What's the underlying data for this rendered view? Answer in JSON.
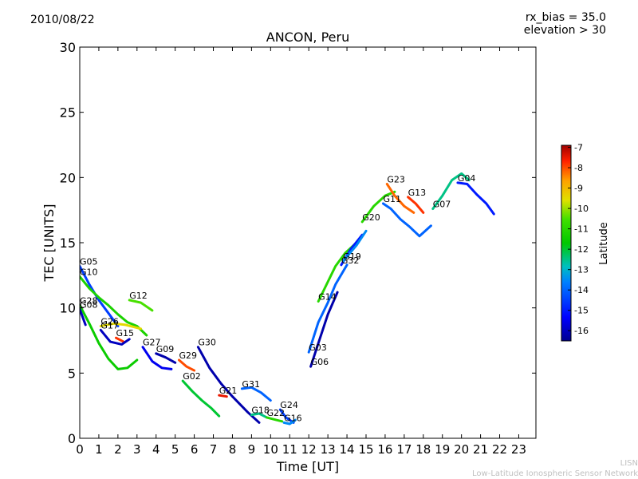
{
  "header": {
    "date": "2010/08/22",
    "rx_bias": "rx_bias = 35.0",
    "elevation": "elevation > 30"
  },
  "footer": {
    "line1": "LISN",
    "line2": "Low-Latitude Ionospheric Sensor Network"
  },
  "chart_data": {
    "type": "line",
    "title": "ANCON, Peru",
    "xlabel": "Time [UT]",
    "ylabel": "TEC [UNITS]",
    "xlim": [
      0,
      23.9
    ],
    "ylim": [
      0,
      30
    ],
    "xticks": [
      0,
      1,
      2,
      3,
      4,
      5,
      6,
      7,
      8,
      9,
      10,
      11,
      12,
      13,
      14,
      15,
      16,
      17,
      18,
      19,
      20,
      21,
      22,
      23
    ],
    "yticks": [
      0,
      5,
      10,
      15,
      20,
      25,
      30
    ],
    "colorbar": {
      "label": "Latitude",
      "min": -16.5,
      "max": -6.9,
      "ticks": [
        -7,
        -8,
        -9,
        -10,
        -11,
        -12,
        -13,
        -14,
        -15,
        -16
      ]
    },
    "series": [
      {
        "name": "G05",
        "lat": -14.5,
        "x": [
          0,
          0.5,
          1,
          1.5,
          2
        ],
        "y": [
          13.2,
          11.8,
          10.6,
          9.6,
          8.6
        ]
      },
      {
        "name": "G10",
        "lat": -11.2,
        "x": [
          0,
          0.5,
          1,
          1.5,
          2,
          2.5,
          3,
          3.5
        ],
        "y": [
          12.4,
          11.5,
          10.8,
          10.2,
          9.5,
          8.9,
          8.6,
          7.9
        ]
      },
      {
        "name": "G28",
        "lat": -11.5,
        "x": [
          0,
          0.5,
          1,
          1.5,
          2,
          2.5,
          3
        ],
        "y": [
          10.2,
          8.8,
          7.3,
          6.1,
          5.3,
          5.4,
          6.0
        ]
      },
      {
        "name": "G08",
        "lat": -16.0,
        "x": [
          0,
          0.3
        ],
        "y": [
          9.9,
          8.7
        ]
      },
      {
        "name": "G12",
        "lat": -10.5,
        "x": [
          2.6,
          3.2,
          3.8
        ],
        "y": [
          10.6,
          10.4,
          9.8
        ]
      },
      {
        "name": "G26",
        "lat": -9.5,
        "x": [
          1.1,
          1.8,
          2.4,
          3.2
        ],
        "y": [
          8.6,
          8.8,
          8.7,
          8.4
        ]
      },
      {
        "name": "G15",
        "lat": -7.8,
        "x": [
          1.9,
          2.3
        ],
        "y": [
          7.7,
          7.4
        ]
      },
      {
        "name": "G17",
        "lat": -16.0,
        "x": [
          1.1,
          1.6,
          2.2,
          2.6
        ],
        "y": [
          8.3,
          7.4,
          7.2,
          7.6
        ]
      },
      {
        "name": "G27",
        "lat": -15.5,
        "x": [
          3.3,
          3.8,
          4.3,
          4.8
        ],
        "y": [
          7.0,
          5.9,
          5.4,
          5.3
        ]
      },
      {
        "name": "G09",
        "lat": -16.2,
        "x": [
          4.0,
          4.5,
          5.0
        ],
        "y": [
          6.5,
          6.2,
          5.8
        ]
      },
      {
        "name": "G29",
        "lat": -8.0,
        "x": [
          5.2,
          5.6,
          6.0
        ],
        "y": [
          6.0,
          5.5,
          5.2
        ]
      },
      {
        "name": "G30",
        "lat": -16.2,
        "x": [
          6.2,
          6.8,
          7.4,
          8.0,
          8.8,
          9.4
        ],
        "y": [
          7.0,
          5.4,
          4.2,
          3.2,
          2.0,
          1.2
        ]
      },
      {
        "name": "G02",
        "lat": -12.0,
        "x": [
          5.4,
          5.9,
          6.4,
          6.9,
          7.3
        ],
        "y": [
          4.4,
          3.6,
          2.9,
          2.3,
          1.7
        ]
      },
      {
        "name": "G21",
        "lat": -7.5,
        "x": [
          7.3,
          7.7
        ],
        "y": [
          3.3,
          3.2
        ]
      },
      {
        "name": "G31",
        "lat": -14.0,
        "x": [
          8.5,
          9.0,
          9.5,
          10.0
        ],
        "y": [
          3.8,
          3.9,
          3.5,
          2.9
        ]
      },
      {
        "name": "G18",
        "lat": -12.5,
        "x": [
          9.0,
          9.4,
          9.8
        ],
        "y": [
          1.8,
          1.9,
          1.6
        ]
      },
      {
        "name": "G22",
        "lat": -11.0,
        "x": [
          9.8,
          10.3,
          10.6
        ],
        "y": [
          1.6,
          1.4,
          1.3
        ]
      },
      {
        "name": "G24",
        "lat": -14.5,
        "x": [
          10.5,
          10.8,
          11.2
        ],
        "y": [
          2.2,
          1.6,
          1.2
        ]
      },
      {
        "name": "G16",
        "lat": -13.5,
        "x": [
          10.7,
          11.0,
          11.3
        ],
        "y": [
          1.2,
          1.1,
          1.4
        ]
      },
      {
        "name": "G06",
        "lat": -16.2,
        "x": [
          12.1,
          12.5,
          13.0,
          13.5
        ],
        "y": [
          5.5,
          7.3,
          9.5,
          11.2
        ]
      },
      {
        "name": "G03",
        "lat": -14.0,
        "x": [
          12.0,
          12.5,
          13.0,
          13.4,
          14.0
        ],
        "y": [
          6.6,
          8.9,
          10.4,
          11.8,
          13.3
        ]
      },
      {
        "name": "G14",
        "lat": -11.0,
        "x": [
          12.5,
          13.0,
          13.4,
          13.9,
          14.5
        ],
        "y": [
          10.5,
          12.0,
          13.2,
          14.2,
          15.0
        ]
      },
      {
        "name": "G32",
        "lat": -15.0,
        "x": [
          13.7,
          14.2,
          14.8
        ],
        "y": [
          13.3,
          14.5,
          15.6
        ]
      },
      {
        "name": "G19",
        "lat": -13.5,
        "x": [
          13.8,
          14.5,
          15.0
        ],
        "y": [
          13.6,
          14.8,
          15.9
        ]
      },
      {
        "name": "G20",
        "lat": -11.0,
        "x": [
          14.8,
          15.4,
          16.0,
          16.5
        ],
        "y": [
          16.6,
          17.8,
          18.6,
          18.9
        ]
      },
      {
        "name": "G11",
        "lat": -14.0,
        "x": [
          15.9,
          16.3,
          16.8,
          17.3,
          17.8,
          18.4
        ],
        "y": [
          18.0,
          17.6,
          16.8,
          16.2,
          15.5,
          16.3
        ]
      },
      {
        "name": "G23",
        "lat": -8.2,
        "x": [
          16.1,
          16.5,
          17.0,
          17.5
        ],
        "y": [
          19.5,
          18.6,
          17.8,
          17.3
        ]
      },
      {
        "name": "G13",
        "lat": -7.8,
        "x": [
          17.2,
          17.6,
          18.0
        ],
        "y": [
          18.5,
          18.0,
          17.3
        ]
      },
      {
        "name": "G07",
        "lat": -12.5,
        "x": [
          18.5,
          19.0,
          19.5,
          20.0,
          20.4
        ],
        "y": [
          17.6,
          18.6,
          19.8,
          20.3,
          19.8
        ]
      },
      {
        "name": "G04",
        "lat": -15.0,
        "x": [
          19.8,
          20.3,
          20.8,
          21.3,
          21.7
        ],
        "y": [
          19.6,
          19.5,
          18.7,
          18.0,
          17.2
        ]
      }
    ]
  }
}
